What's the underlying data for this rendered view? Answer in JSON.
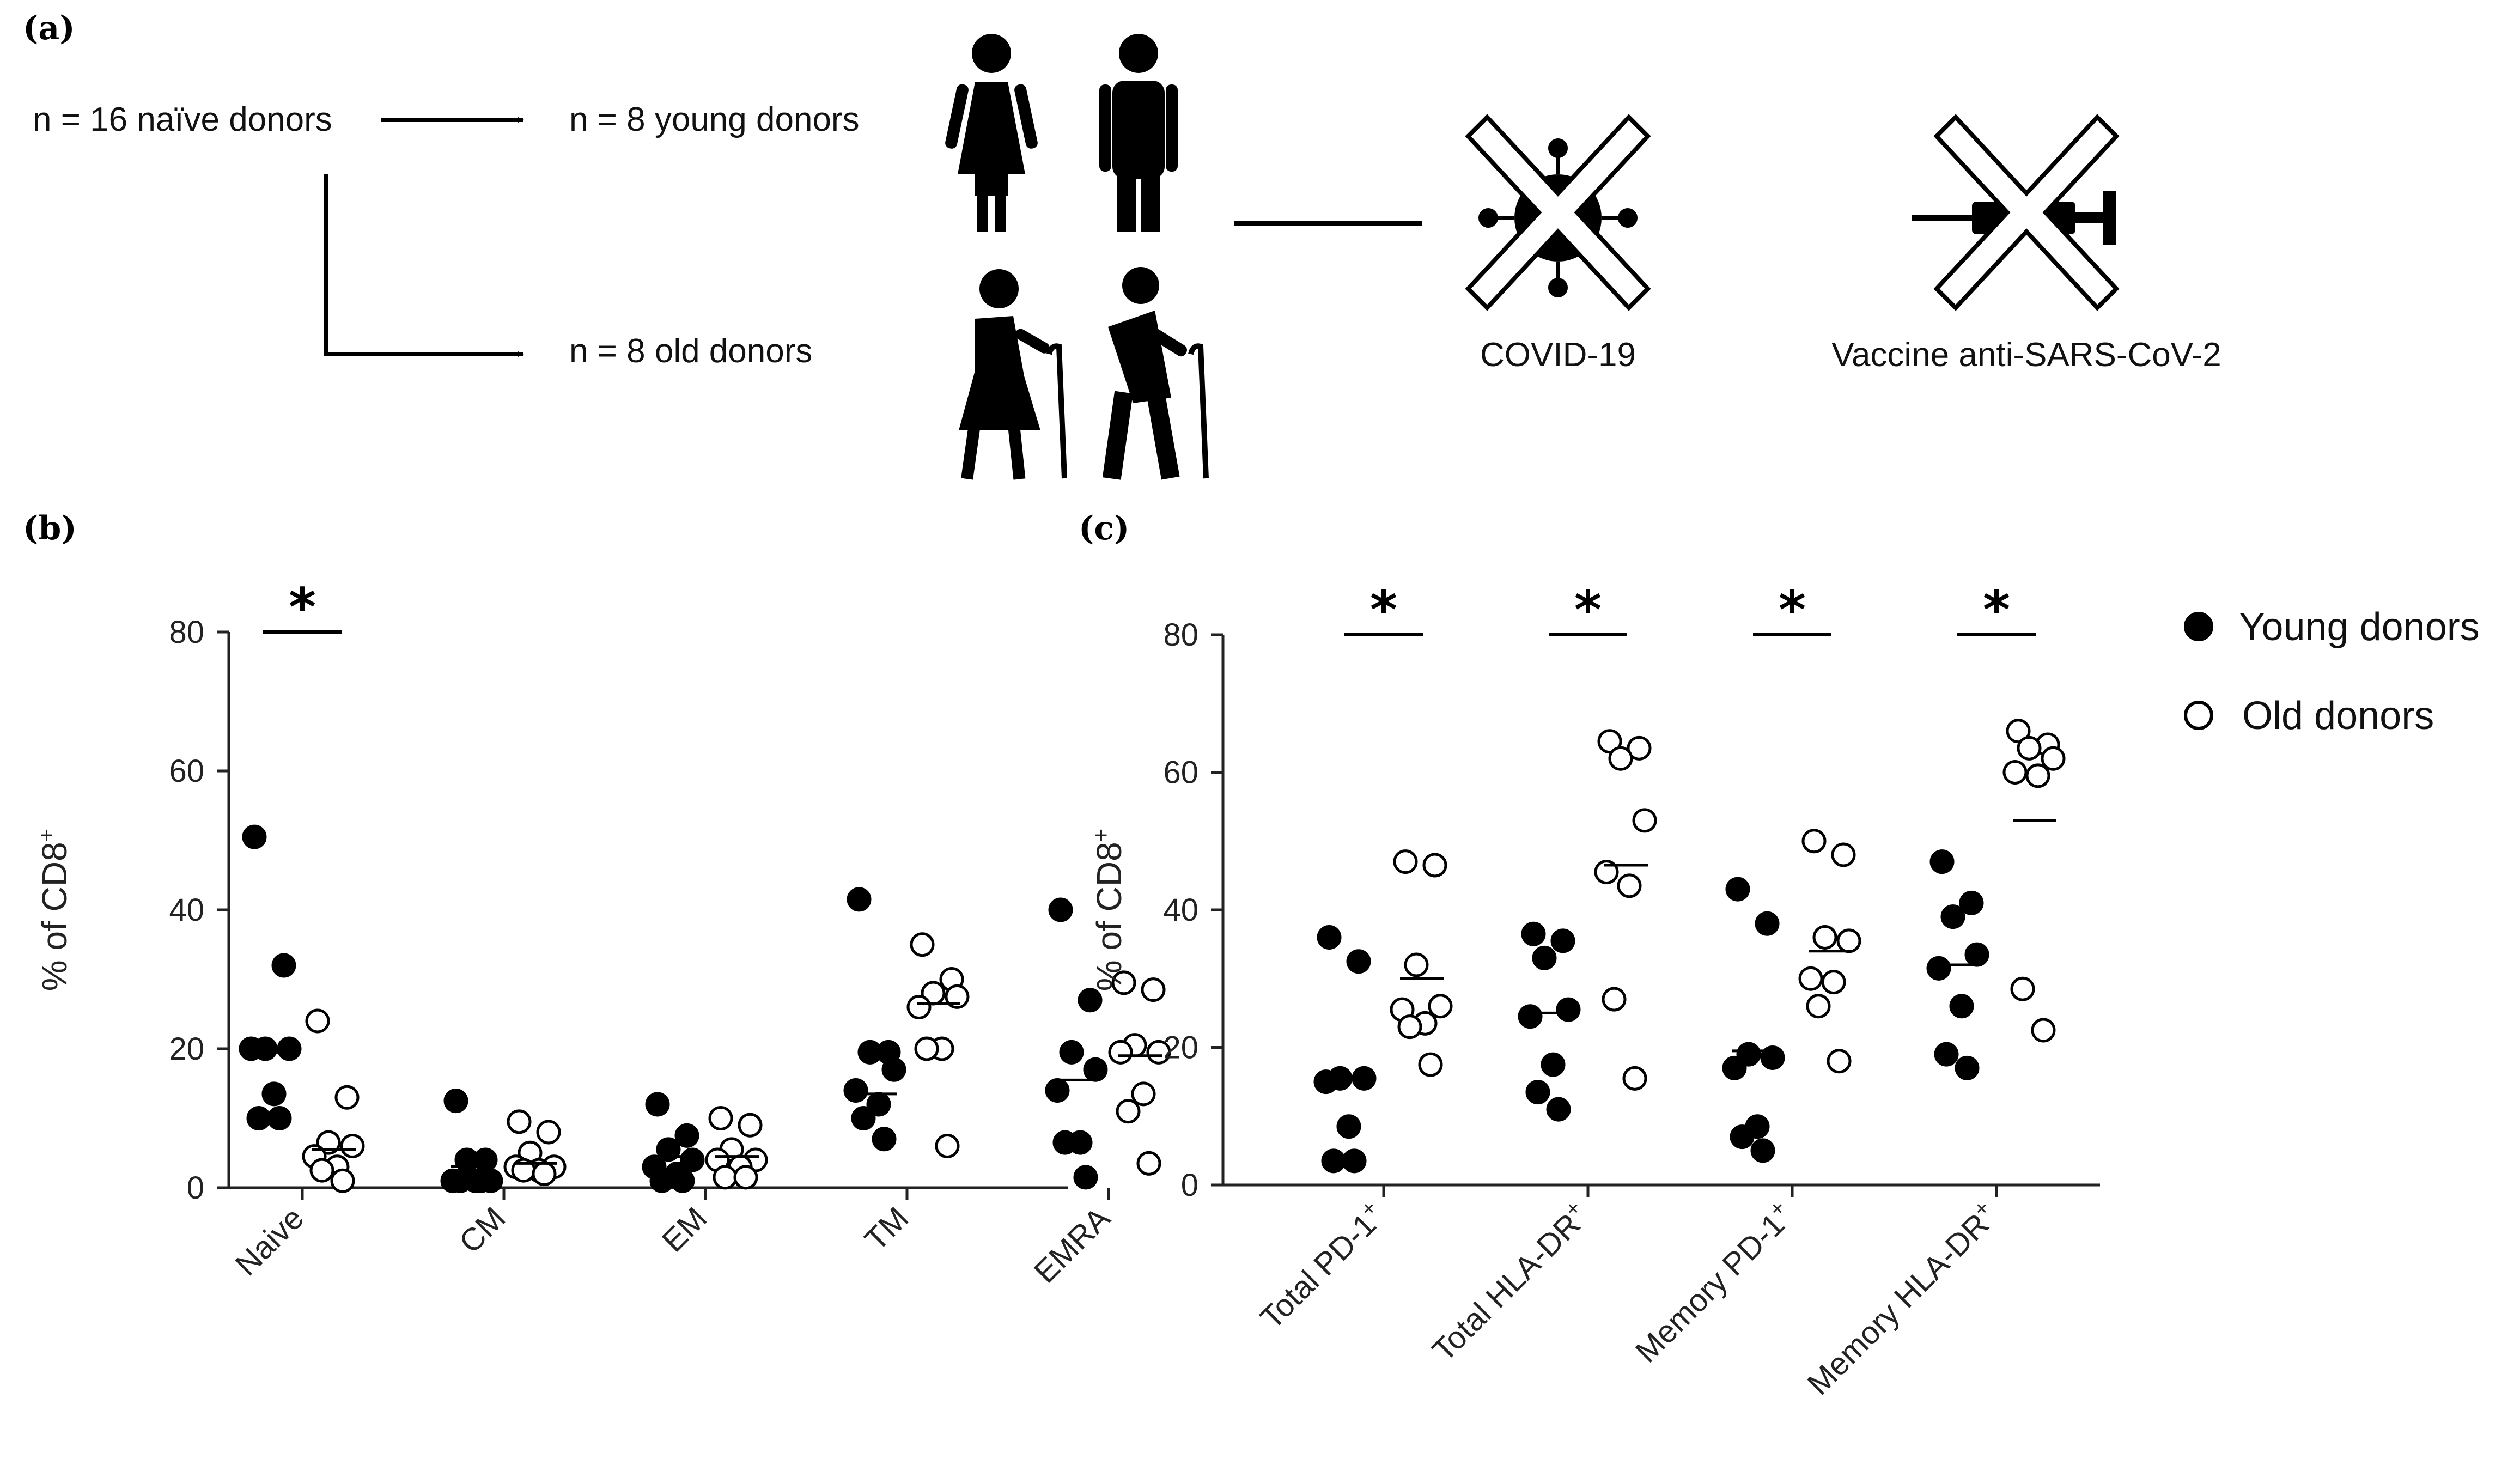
{
  "panel_labels": {
    "a": "(a)",
    "b": "(b)",
    "c": "(c)"
  },
  "flow": {
    "total": "n = 16 naïve donors",
    "young": "n = 8 young donors",
    "old": "n = 8 old donors",
    "covid": "COVID-19",
    "vaccine": "Vaccine anti-SARS-CoV-2"
  },
  "colors": {
    "ink": "#000000",
    "axis": "#222222",
    "open_fill": "#ffffff"
  },
  "chart_data": [
    {
      "type": "scatter",
      "title": "",
      "ylabel": "% of CD8",
      "ylabel_sup": "+",
      "ylim": [
        0,
        80
      ],
      "yticks": [
        0,
        20,
        40,
        60,
        80
      ],
      "categories": [
        "Naive",
        "CM",
        "EM",
        "TM",
        "EMRA"
      ],
      "series": [
        {
          "name": "Young donors",
          "marker": "filled",
          "values": [
            [
              50.5,
              32,
              20,
              20,
              20,
              13.5,
              10,
              10
            ],
            [
              12.5,
              4,
              4,
              1,
              1,
              1,
              1,
              1
            ],
            [
              12,
              7.5,
              5.5,
              4,
              3,
              2,
              1,
              1
            ],
            [
              41.5,
              19.5,
              19.5,
              17,
              14,
              12,
              10,
              7
            ],
            [
              40,
              27,
              19.5,
              17,
              14,
              6.5,
              6.5,
              1.5
            ]
          ],
          "means": [
            19.5,
            3.1,
            4.5,
            13.5,
            15.5
          ]
        },
        {
          "name": "Old donors",
          "marker": "open",
          "values": [
            [
              24,
              13,
              6.5,
              6,
              4.5,
              3,
              2.5,
              1
            ],
            [
              9.5,
              8,
              5,
              3,
              3,
              2.5,
              2.5,
              2
            ],
            [
              10,
              9,
              5.5,
              4,
              4,
              3,
              1.5,
              1.5
            ],
            [
              35,
              30,
              28,
              27.5,
              26,
              20,
              20,
              6
            ],
            [
              29.5,
              28.5,
              20.5,
              19.5,
              19.5,
              13.5,
              11,
              3.5
            ]
          ],
          "means": [
            5.5,
            3.5,
            4.5,
            26.5,
            19
          ]
        }
      ],
      "significance": [
        {
          "category": "Naive",
          "label": "*"
        }
      ]
    },
    {
      "type": "scatter",
      "title": "",
      "ylabel": "% of CD8",
      "ylabel_sup": "+",
      "ylim": [
        0,
        80
      ],
      "yticks": [
        0,
        20,
        40,
        60,
        80
      ],
      "categories": [
        {
          "label": "Total PD-1",
          "sup": "+"
        },
        {
          "label": "Total HLA-DR",
          "sup": "+"
        },
        {
          "label": "Memory PD-1",
          "sup": "+"
        },
        {
          "label": "Memory HLA-DR",
          "sup": "+"
        }
      ],
      "series": [
        {
          "name": "Young donors",
          "marker": "filled",
          "values": [
            [
              36,
              32.5,
              15.5,
              15.5,
              15,
              8.5,
              3.5,
              3.5
            ],
            [
              36.5,
              35.5,
              33,
              25.5,
              24.5,
              17.5,
              13.5,
              11
            ],
            [
              43,
              38,
              19,
              18.5,
              17,
              8.5,
              7,
              5
            ],
            [
              47,
              41,
              39,
              33.5,
              31.5,
              26,
              19,
              17
            ]
          ],
          "means": [
            15.5,
            25,
            19.5,
            32
          ]
        },
        {
          "name": "Old donors",
          "marker": "open",
          "values": [
            [
              47,
              46.5,
              32,
              26,
              25.5,
              23.5,
              23,
              17.5
            ],
            [
              64.5,
              63.5,
              62,
              53,
              45.5,
              43.5,
              27,
              15.5
            ],
            [
              50,
              48,
              36,
              35.5,
              30,
              29.5,
              26,
              18
            ],
            [
              66,
              64,
              63.5,
              62,
              60,
              59.5,
              28.5,
              22.5
            ]
          ],
          "means": [
            30,
            46.5,
            34,
            53
          ]
        }
      ],
      "significance": [
        {
          "category": "Total PD-1",
          "label": "*"
        },
        {
          "category": "Total HLA-DR",
          "label": "*"
        },
        {
          "category": "Memory PD-1",
          "label": "*"
        },
        {
          "category": "Memory HLA-DR",
          "label": "*"
        }
      ]
    }
  ],
  "legend": {
    "entries": [
      {
        "label": "Young donors",
        "marker": "filled"
      },
      {
        "label": "Old donors",
        "marker": "open"
      }
    ]
  },
  "icons": [
    "woman-icon",
    "man-icon",
    "elderly-woman-icon",
    "elderly-man-icon",
    "virus-icon",
    "syringe-icon",
    "cross-icon",
    "arrow-icon"
  ]
}
